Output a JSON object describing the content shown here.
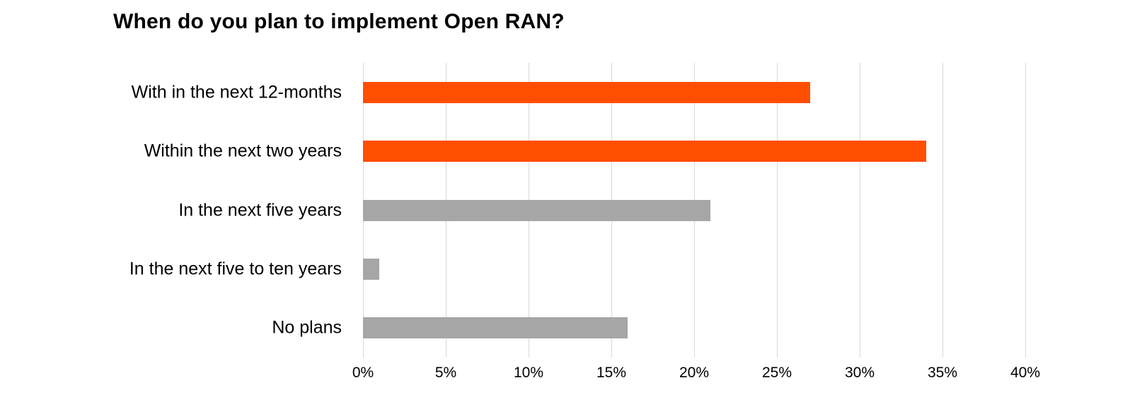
{
  "title": "When do you plan to implement Open RAN?",
  "chart_data": {
    "type": "bar",
    "orientation": "horizontal",
    "title": "When do you plan to implement Open RAN?",
    "categories": [
      "With in the next 12-months",
      "Within the next two years",
      "In the next five years",
      "In the next five to ten years",
      "No plans"
    ],
    "values": [
      27,
      34,
      21,
      1,
      16
    ],
    "unit": "%",
    "xlabel": "",
    "ylabel": "",
    "xlim": [
      0,
      40
    ],
    "x_ticks": [
      "0%",
      "5%",
      "10%",
      "15%",
      "20%",
      "25%",
      "30%",
      "35%",
      "40%"
    ],
    "grid": true,
    "legend": "none",
    "bar_colors": [
      "#FF4E00",
      "#FF4E00",
      "#A6A6A6",
      "#A6A6A6",
      "#A6A6A6"
    ],
    "colors": {
      "highlight": "#FF4E00",
      "default_bar": "#A6A6A6",
      "gridline": "#D9D9D9",
      "text": "#000000",
      "background": "#FFFFFF"
    }
  }
}
